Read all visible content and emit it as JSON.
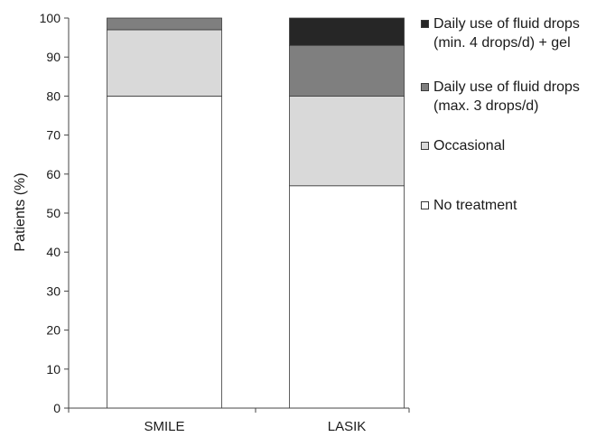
{
  "chart_data": {
    "type": "bar",
    "stacked": true,
    "categories": [
      "SMILE",
      "LASIK"
    ],
    "ylabel": "Patients (%)",
    "xlabel": "",
    "ylim": [
      0,
      100
    ],
    "yticks": [
      0,
      10,
      20,
      30,
      40,
      50,
      60,
      70,
      80,
      90,
      100
    ],
    "grid": false,
    "legend_position": "right",
    "series": [
      {
        "name": "No treatment",
        "values": [
          80,
          57
        ],
        "color": "#ffffff"
      },
      {
        "name": "Occasional",
        "values": [
          17,
          23
        ],
        "color": "#d9d9d9"
      },
      {
        "name": "Daily use of fluid drops\n(max. 3 drops/d)",
        "values": [
          3,
          13
        ],
        "color": "#7f7f7f"
      },
      {
        "name": "Daily use of fluid drops\n(min. 4 drops/d) + gel",
        "values": [
          0,
          7
        ],
        "color": "#262626"
      }
    ],
    "legend_order": [
      3,
      2,
      1,
      0
    ]
  }
}
